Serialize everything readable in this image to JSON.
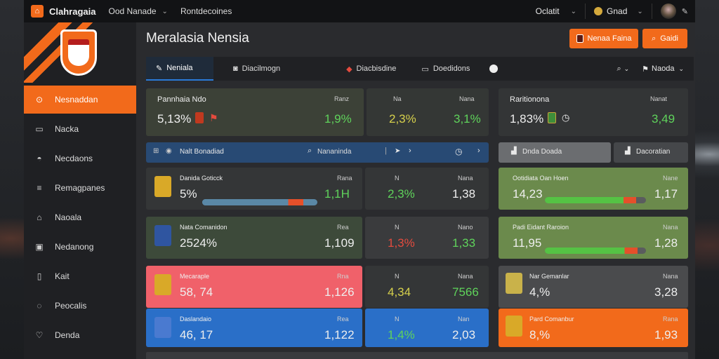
{
  "topbar": {
    "logo_glyph": "⌂",
    "brand": "Clahragaia",
    "menu_1": "Ood Nanade",
    "menu_2": "Rontdecoines",
    "account_label": "Oclatit",
    "balance_label": "Gnad"
  },
  "sidebar": {
    "items": [
      {
        "label": "Nesnaddan",
        "icon": "clock-icon",
        "glyph": "⊙",
        "active": true
      },
      {
        "label": "Nacka",
        "icon": "window-icon",
        "glyph": "▭",
        "active": false
      },
      {
        "label": "Necdaons",
        "icon": "chat-icon",
        "glyph": "◓",
        "active": false
      },
      {
        "label": "Remagpanes",
        "icon": "list-icon",
        "glyph": "≡",
        "active": false
      },
      {
        "label": "Naoala",
        "icon": "bell-icon",
        "glyph": "⌂",
        "active": false
      },
      {
        "label": "Nedanong",
        "icon": "calendar-icon",
        "glyph": "▣",
        "active": false
      },
      {
        "label": "Kait",
        "icon": "document-icon",
        "glyph": "▯",
        "active": false
      },
      {
        "label": "Peocalis",
        "icon": "shield-icon",
        "glyph": "◌",
        "active": false
      },
      {
        "label": "Denda",
        "icon": "heart-icon",
        "glyph": "♡",
        "active": false
      }
    ]
  },
  "header": {
    "title": "Meralasia Nensia",
    "button_1": "Nenaa Faina",
    "button_2": "Gaidi"
  },
  "tabs": [
    {
      "label": "Neniala",
      "active": true
    },
    {
      "label": "Diacilmogn",
      "active": false
    },
    {
      "label": "Diacbisdine",
      "active": false
    },
    {
      "label": "Doedidons",
      "active": false
    }
  ],
  "tabs_right": {
    "filter_label": "Naoda"
  },
  "summary": {
    "left": {
      "label": "Pannhaia Ndo",
      "value": "5,13%",
      "col1_head": "Ranz",
      "col1_val": "1,9%",
      "col2_head": "Na",
      "col2_val": "2,3%",
      "col3_head": "Nana",
      "col3_val": "3,1%"
    },
    "right": {
      "label": "Raritionona",
      "value": "1,83%",
      "col_head": "Nanat",
      "col_val": "3,49"
    }
  },
  "filterbar": {
    "left_label": "Nalt Bonadiad",
    "search_label": "Nananinda",
    "btn_1": "Dnda Doada",
    "btn_2": "Dacoratian"
  },
  "rows": [
    {
      "left": {
        "name": "Danida Goticck",
        "score": "5%",
        "head_a": "Rana",
        "val_a": "1,1H",
        "head_b": "N",
        "val_b": "2,3%",
        "head_c": "Nana",
        "val_c": "1,38",
        "progress": 0.88
      },
      "right": {
        "name": "Ootidiata Oan Hoen",
        "value": "14,23",
        "head": "Nane",
        "val": "1,17",
        "progress": 0.9
      }
    },
    {
      "left": {
        "name": "Nata Comanidon",
        "score": "2524%",
        "head_a": "Rea",
        "val_a": "1,109",
        "head_b": "N",
        "val_b": "1,3%",
        "head_c": "Nano",
        "val_c": "1,33"
      },
      "right": {
        "name": "Padi Eidant Raroion",
        "value": "11,95",
        "head": "Nana",
        "val": "1,28",
        "progress": 0.92
      }
    },
    {
      "left": {
        "name": "Mecaraple",
        "score": "58, 74",
        "head_a": "Rna",
        "val_a": "1,126",
        "head_b": "N",
        "val_b": "4,34",
        "head_c": "Nana",
        "val_c": "7566"
      },
      "right": {
        "name": "Nar Gemanlar",
        "value": "4,%",
        "head": "Nana",
        "val": "3,28"
      }
    },
    {
      "left": {
        "name": "Daslandaio",
        "score": "46, 17",
        "head_a": "Rea",
        "val_a": "1,122",
        "head_b": "N",
        "val_b": "1,4%",
        "head_c": "Nan",
        "val_c": "2,03"
      },
      "right": {
        "name": "Pard Comanbur",
        "value": "8,%",
        "head": "Rana",
        "val": "1,93"
      }
    }
  ],
  "colors": {
    "accent": "#f26a1b",
    "positive": "#5fd35b",
    "negative": "#e44b3e",
    "highlight_red": "#f0616a",
    "highlight_blue": "#2a6fc8",
    "highlight_green": "#6b8a4c"
  }
}
